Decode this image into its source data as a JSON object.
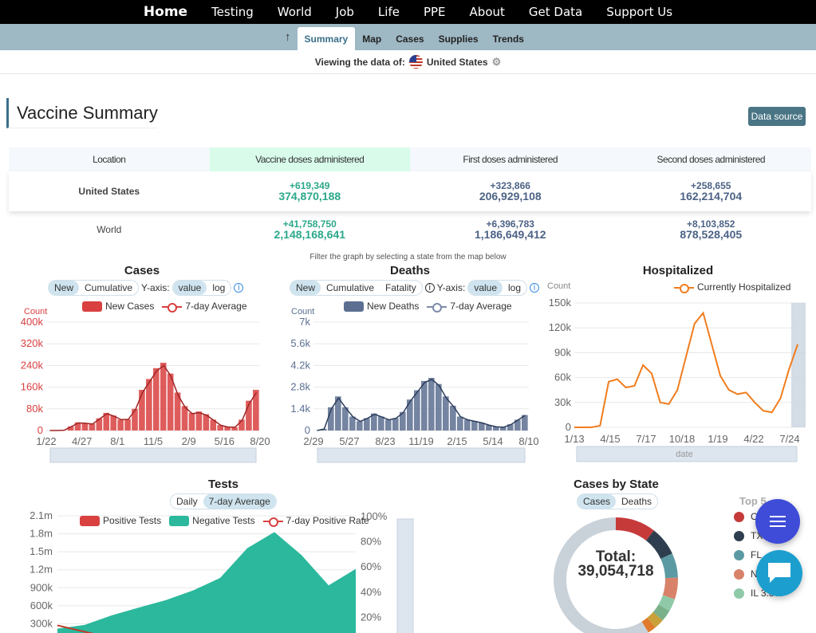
{
  "nav": {
    "items": [
      "Home",
      "Testing",
      "World",
      "Job",
      "Life",
      "PPE",
      "About",
      "Get Data",
      "Support Us"
    ]
  },
  "subnav": {
    "up_icon": "arrow-up-icon",
    "tabs": [
      "Summary",
      "Map",
      "Cases",
      "Supplies",
      "Trends"
    ],
    "active": "Summary"
  },
  "viewing": {
    "label": "Viewing the data of:",
    "location": "United States",
    "settings_icon": "gear-icon"
  },
  "vaccine": {
    "title": "Vaccine Summary",
    "data_source_label": "Data source",
    "headers": [
      "Location",
      "Vaccine doses administered",
      "First doses administered",
      "Second doses administered"
    ],
    "rows": [
      {
        "location": "United States",
        "doses_new": "+619,349",
        "doses_total": "374,870,188",
        "first_new": "+323,866",
        "first_total": "206,929,108",
        "second_new": "+258,655",
        "second_total": "162,214,704"
      },
      {
        "location": "World",
        "doses_new": "+41,758,750",
        "doses_total": "2,148,168,641",
        "first_new": "+6,396,783",
        "first_total": "1,186,649,412",
        "second_new": "+8,103,852",
        "second_total": "878,528,405"
      }
    ]
  },
  "filter_note": "Filter the graph by selecting a state from the map below",
  "cases_chart": {
    "title": "Cases",
    "toggle": [
      "New",
      "Cumulative"
    ],
    "toggle_active": "New",
    "yaxis_label": "Y-axis:",
    "scale": [
      "value",
      "log"
    ],
    "scale_active": "value",
    "legend_bar": "New Cases",
    "legend_line": "7-day Average",
    "color": "#d94040"
  },
  "deaths_chart": {
    "title": "Deaths",
    "toggle": [
      "New",
      "Cumulative",
      "Fatality"
    ],
    "toggle_active": "New",
    "yaxis_label": "Y-axis:",
    "scale": [
      "value",
      "log"
    ],
    "scale_active": "value",
    "legend_bar": "New Deaths",
    "legend_line": "7-day Average",
    "color": "#5c6f91"
  },
  "hosp_chart": {
    "title": "Hospitalized",
    "legend_line": "Currently Hospitalized",
    "color": "#f07d1e"
  },
  "tests_chart": {
    "title": "Tests",
    "toggle": [
      "Daily",
      "7-day Average"
    ],
    "toggle_active": "7-day Average",
    "legend_pos": "Positive Tests",
    "legend_neg": "Negative Tests",
    "legend_rate": "7-day Positive Rate",
    "colors": {
      "positive": "#d94040",
      "negative": "#2bb89c"
    }
  },
  "cases_by_state": {
    "title": "Cases by State",
    "toggle": [
      "Cases",
      "Deaths"
    ],
    "toggle_active": "Cases",
    "total_label": "Total:",
    "total_value": "39,054,718",
    "top_label": "Top 5",
    "states": [
      {
        "label": "C",
        "color": "#c63a3a"
      },
      {
        "label": "TX",
        "color": "#2f3e4f"
      },
      {
        "label": "FL",
        "color": "#5b9aa2"
      },
      {
        "label": "N",
        "color": "#d9826a"
      },
      {
        "label": "IL 3.3%",
        "color": "#8fc9a8"
      }
    ],
    "slices": [
      {
        "value": 10.5,
        "color": "#c63a3a"
      },
      {
        "value": 7.6,
        "color": "#2f3e4f"
      },
      {
        "value": 6.4,
        "color": "#5b9aa2"
      },
      {
        "value": 5.6,
        "color": "#d9826a"
      },
      {
        "value": 3.3,
        "color": "#8fc9a8"
      },
      {
        "value": 3.0,
        "color": "#7ab08a"
      },
      {
        "value": 2.6,
        "color": "#c9a03a"
      },
      {
        "value": 2.2,
        "color": "#e07b2e"
      },
      {
        "value": 58.8,
        "color": "#c9d1d9"
      }
    ]
  },
  "fab": {
    "menu_icon": "hamburger-menu-icon",
    "chat_icon": "chat-bubble-icon"
  },
  "chart_data": [
    {
      "type": "bar",
      "title": "Cases",
      "ylabel": "Count",
      "ylim": [
        0,
        400000
      ],
      "yticks": [
        "0",
        "80k",
        "160k",
        "240k",
        "320k",
        "400k"
      ],
      "xticks": [
        "1/22",
        "4/27",
        "8/1",
        "11/5",
        "2/9",
        "5/16",
        "8/20"
      ],
      "series": [
        {
          "name": "New Cases",
          "values": [
            0,
            0,
            1000,
            15000,
            30000,
            28000,
            25000,
            45000,
            65000,
            55000,
            40000,
            42000,
            80000,
            150000,
            190000,
            230000,
            250000,
            210000,
            140000,
            90000,
            65000,
            70000,
            60000,
            40000,
            20000,
            14000,
            12000,
            40000,
            110000,
            150000
          ]
        },
        {
          "name": "7-day Average",
          "values": [
            0,
            0,
            1000,
            14000,
            28000,
            27000,
            24000,
            43000,
            62000,
            53000,
            40000,
            41000,
            76000,
            140000,
            180000,
            220000,
            240000,
            200000,
            130000,
            85000,
            62000,
            66000,
            56000,
            38000,
            19000,
            13000,
            12000,
            38000,
            100000,
            140000
          ]
        }
      ]
    },
    {
      "type": "bar",
      "title": "Deaths",
      "ylabel": "Count",
      "ylim": [
        0,
        7000
      ],
      "yticks": [
        "0",
        "1.4k",
        "2.8k",
        "4.2k",
        "5.6k",
        "7k"
      ],
      "xticks": [
        "2/29",
        "5/27",
        "8/23",
        "11/19",
        "2/15",
        "5/14",
        "8/10"
      ],
      "series": [
        {
          "name": "New Deaths",
          "values": [
            0,
            100,
            1500,
            2200,
            1500,
            900,
            600,
            800,
            1100,
            900,
            700,
            800,
            1200,
            2000,
            2600,
            3200,
            3400,
            3000,
            2200,
            1600,
            900,
            700,
            600,
            500,
            350,
            250,
            220,
            400,
            700,
            1000
          ]
        },
        {
          "name": "7-day Average",
          "values": [
            0,
            100,
            1400,
            2100,
            1450,
            880,
            590,
            780,
            1050,
            880,
            690,
            790,
            1150,
            1900,
            2500,
            3100,
            3300,
            2900,
            2100,
            1550,
            880,
            690,
            590,
            490,
            340,
            240,
            215,
            380,
            680,
            980
          ]
        }
      ]
    },
    {
      "type": "line",
      "title": "Hospitalized",
      "ylabel": "Count",
      "ylim": [
        0,
        150000
      ],
      "yticks": [
        "0",
        "30k",
        "60k",
        "90k",
        "120k",
        "150k"
      ],
      "xticks": [
        "1/13",
        "4/15",
        "7/17",
        "10/18",
        "1/19",
        "4/22",
        "7/24"
      ],
      "xlabel": "date",
      "series": [
        {
          "name": "Currently Hospitalized",
          "values": [
            0,
            0,
            0,
            2000,
            55000,
            58000,
            48000,
            50000,
            75000,
            65000,
            30000,
            28000,
            45000,
            85000,
            125000,
            138000,
            100000,
            62000,
            45000,
            40000,
            42000,
            30000,
            20000,
            18000,
            35000,
            70000,
            100000
          ]
        }
      ]
    },
    {
      "type": "area",
      "title": "Tests",
      "ylim": [
        0,
        2100000
      ],
      "yticks": [
        "300k",
        "600k",
        "900k",
        "1.2m",
        "1.5m",
        "1.8m",
        "2.1m"
      ],
      "y2ticks": [
        "20%",
        "40%",
        "60%",
        "80%",
        "100%"
      ],
      "series": [
        {
          "name": "Positive Tests",
          "values": [
            100000,
            80000,
            60000,
            50000,
            45000,
            55000,
            65000,
            60000,
            50000,
            45000,
            40000,
            35000
          ]
        },
        {
          "name": "Negative Tests",
          "values": [
            120000,
            200000,
            380000,
            520000,
            650000,
            800000,
            1000000,
            1500000,
            1780000,
            1400000,
            900000,
            1180000
          ]
        },
        {
          "name": "7-day Positive Rate",
          "values": [
            13,
            8,
            3,
            4,
            5,
            4,
            3,
            4,
            3,
            2,
            3,
            5
          ]
        }
      ]
    },
    {
      "type": "pie",
      "title": "Cases by State",
      "categories": [
        "C",
        "TX",
        "FL",
        "N",
        "IL"
      ],
      "values": [
        10.5,
        7.6,
        6.4,
        5.6,
        3.3
      ]
    }
  ]
}
